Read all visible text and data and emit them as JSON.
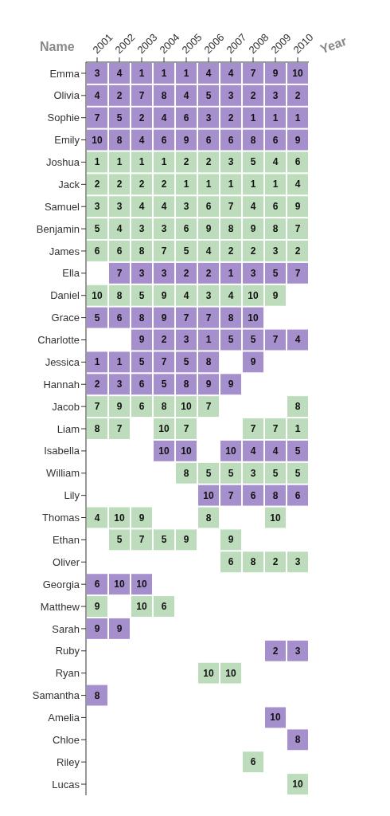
{
  "chart_data": {
    "type": "heatmap",
    "xlabel": "Year",
    "ylabel": "Name",
    "data_labels": true,
    "categories": [
      "2001",
      "2002",
      "2003",
      "2004",
      "2005",
      "2006",
      "2007",
      "2008",
      "2009",
      "2010"
    ],
    "y_categories": [
      "Emma",
      "Olivia",
      "Sophie",
      "Emily",
      "Joshua",
      "Jack",
      "Samuel",
      "Benjamin",
      "James",
      "Ella",
      "Daniel",
      "Grace",
      "Charlotte",
      "Jessica",
      "Hannah",
      "Jacob",
      "Liam",
      "Isabella",
      "William",
      "Lily",
      "Thomas",
      "Ethan",
      "Oliver",
      "Georgia",
      "Matthew",
      "Sarah",
      "Ruby",
      "Ryan",
      "Samantha",
      "Amelia",
      "Chloe",
      "Riley",
      "Lucas"
    ],
    "colors": [
      "#a58fcc",
      "#a58fcc",
      "#a58fcc",
      "#a58fcc",
      "#bcdcbc",
      "#bcdcbc",
      "#bcdcbc",
      "#bcdcbc",
      "#bcdcbc",
      "#a58fcc",
      "#bcdcbc",
      "#a58fcc",
      "#a58fcc",
      "#a58fcc",
      "#a58fcc",
      "#bcdcbc",
      "#bcdcbc",
      "#a58fcc",
      "#bcdcbc",
      "#a58fcc",
      "#bcdcbc",
      "#bcdcbc",
      "#bcdcbc",
      "#a58fcc",
      "#bcdcbc",
      "#a58fcc",
      "#a58fcc",
      "#bcdcbc",
      "#a58fcc",
      "#a58fcc",
      "#a58fcc",
      "#bcdcbc",
      "#bcdcbc"
    ],
    "cells": [
      [
        3,
        4,
        1,
        1,
        1,
        4,
        4,
        7,
        9,
        10
      ],
      [
        4,
        2,
        7,
        8,
        4,
        5,
        3,
        2,
        3,
        2
      ],
      [
        7,
        5,
        2,
        4,
        6,
        3,
        2,
        1,
        1,
        1
      ],
      [
        10,
        8,
        4,
        6,
        9,
        6,
        6,
        8,
        6,
        9
      ],
      [
        1,
        1,
        1,
        1,
        2,
        2,
        3,
        5,
        4,
        6
      ],
      [
        2,
        2,
        2,
        2,
        1,
        1,
        1,
        1,
        1,
        4
      ],
      [
        3,
        3,
        4,
        4,
        3,
        6,
        7,
        4,
        6,
        9
      ],
      [
        5,
        4,
        3,
        3,
        6,
        9,
        8,
        9,
        8,
        7
      ],
      [
        6,
        6,
        8,
        7,
        5,
        4,
        2,
        2,
        3,
        2
      ],
      [
        null,
        7,
        3,
        3,
        2,
        2,
        1,
        3,
        5,
        7
      ],
      [
        10,
        8,
        5,
        9,
        4,
        3,
        4,
        10,
        9,
        null
      ],
      [
        5,
        6,
        8,
        9,
        7,
        7,
        8,
        10,
        null,
        null
      ],
      [
        null,
        null,
        9,
        2,
        3,
        1,
        5,
        5,
        7,
        4
      ],
      [
        1,
        1,
        5,
        7,
        5,
        8,
        null,
        9,
        null,
        null
      ],
      [
        2,
        3,
        6,
        5,
        8,
        9,
        9,
        null,
        null,
        null
      ],
      [
        7,
        9,
        6,
        8,
        10,
        7,
        null,
        null,
        null,
        8
      ],
      [
        8,
        7,
        null,
        10,
        7,
        null,
        null,
        7,
        7,
        1
      ],
      [
        null,
        null,
        null,
        10,
        10,
        null,
        10,
        4,
        4,
        5
      ],
      [
        null,
        null,
        null,
        null,
        8,
        5,
        5,
        3,
        5,
        5
      ],
      [
        null,
        null,
        null,
        null,
        null,
        10,
        7,
        6,
        8,
        6
      ],
      [
        4,
        10,
        9,
        null,
        null,
        8,
        null,
        null,
        10,
        null
      ],
      [
        null,
        5,
        7,
        5,
        9,
        null,
        9,
        null,
        null,
        null
      ],
      [
        null,
        null,
        null,
        null,
        null,
        null,
        6,
        8,
        2,
        3
      ],
      [
        6,
        10,
        10,
        null,
        null,
        null,
        null,
        null,
        null,
        null
      ],
      [
        9,
        null,
        10,
        6,
        null,
        null,
        null,
        null,
        null,
        null
      ],
      [
        9,
        9,
        null,
        null,
        null,
        null,
        null,
        null,
        null,
        null
      ],
      [
        null,
        null,
        null,
        null,
        null,
        null,
        null,
        null,
        2,
        3
      ],
      [
        null,
        null,
        null,
        null,
        null,
        10,
        10,
        null,
        null,
        null
      ],
      [
        8,
        null,
        null,
        null,
        null,
        null,
        null,
        null,
        null,
        null
      ],
      [
        null,
        null,
        null,
        null,
        null,
        null,
        null,
        null,
        10,
        null
      ],
      [
        null,
        null,
        null,
        null,
        null,
        null,
        null,
        null,
        null,
        8
      ],
      [
        null,
        null,
        null,
        null,
        null,
        null,
        null,
        6,
        null,
        null
      ],
      [
        null,
        null,
        null,
        null,
        null,
        null,
        null,
        null,
        null,
        10
      ]
    ]
  }
}
